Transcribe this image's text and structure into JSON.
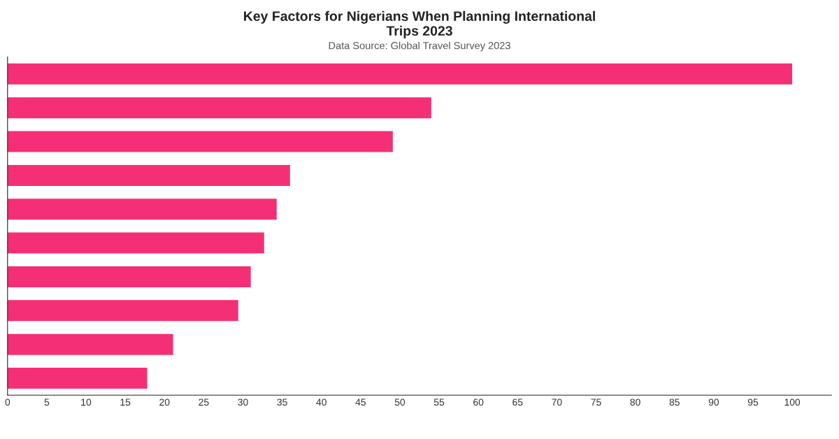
{
  "chart_data": {
    "type": "bar",
    "orientation": "horizontal",
    "title": "Key Factors for Nigerians When Planning International\nTrips 2023",
    "subtitle": "Data Source: Global Travel Survey 2023",
    "categories": [
      null,
      null,
      null,
      null,
      null,
      null,
      null,
      null,
      null,
      null
    ],
    "values": [
      100,
      54,
      49.1,
      36,
      34.3,
      32.7,
      31,
      29.4,
      21.1,
      17.8
    ],
    "color": "#f52f75",
    "xlim": [
      0,
      105
    ],
    "xticks": [
      0,
      5,
      10,
      15,
      20,
      25,
      30,
      35,
      40,
      45,
      50,
      55,
      60,
      65,
      70,
      75,
      80,
      85,
      90,
      95,
      100
    ],
    "tick_labels": "x",
    "grid": false,
    "legend": false
  }
}
